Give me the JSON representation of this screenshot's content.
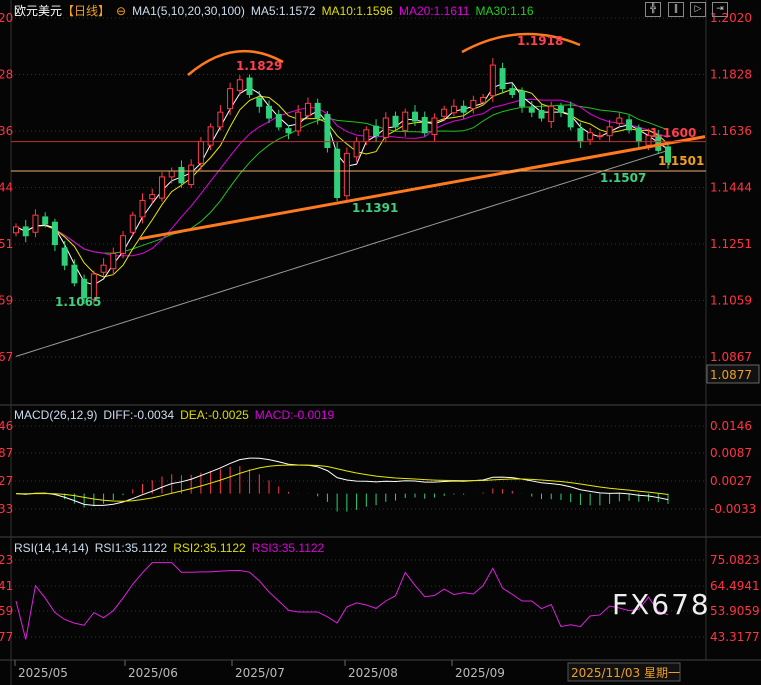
{
  "header": {
    "symbol": "欧元美元",
    "period": "【日线】",
    "ma_label": "MA1(5,10,20,30,100)",
    "ma5": "MA5:1.1572",
    "ma10": "MA10:1.1596",
    "ma20": "MA20:1.1611",
    "ma30": "MA30:1.16"
  },
  "macd_header": {
    "label": "MACD(26,12,9)",
    "diff": "DIFF:-0.0034",
    "dea": "DEA:-0.0025",
    "macd": "MACD:-0.0019"
  },
  "rsi_header": {
    "label": "RSI(14,14,14)",
    "rsi1": "RSI1:35.1122",
    "rsi2": "RSI2:35.1122",
    "rsi3": "RSI3:35.1122"
  },
  "watermark": "FX678",
  "toolbar_icons": [
    "crosshair-icon",
    "bar-icon",
    "play-icon",
    "step-icon"
  ],
  "colors": {
    "up": "#ff3b4a",
    "down": "#2fd07a",
    "ma5": "#ffffff",
    "ma10": "#e8e800",
    "ma20": "#e000e0",
    "ma30": "#22c022",
    "ma100": "#999999",
    "trend": "#ff7a1e",
    "axis": "#ff3344"
  },
  "chart_data": [
    {
      "type": "candlestick",
      "title": "欧元美元【日线】",
      "price_ticks": [
        "1.2020",
        "1.1828",
        "1.1636",
        "1.1444",
        "1.1251",
        "1.1059",
        "1.0867"
      ],
      "left_ticks": [
        "20",
        "28",
        "36",
        "44",
        "51",
        "59",
        "67"
      ],
      "ylim": [
        1.0867,
        1.202
      ],
      "x_ticks": [
        "2025/05",
        "2025/06",
        "2025/07",
        "2025/08",
        "2025/09"
      ],
      "cursor_date": "2025/11/03 星期一",
      "cursor_price": "1.0877",
      "closes": [
        1.131,
        1.128,
        1.135,
        1.132,
        1.125,
        1.118,
        1.112,
        1.107,
        1.115,
        1.118,
        1.122,
        1.128,
        1.135,
        1.14,
        1.142,
        1.148,
        1.15,
        1.146,
        1.152,
        1.16,
        1.165,
        1.17,
        1.178,
        1.181,
        1.176,
        1.172,
        1.168,
        1.165,
        1.163,
        1.17,
        1.173,
        1.168,
        1.158,
        1.141,
        1.156,
        1.16,
        1.164,
        1.162,
        1.168,
        1.165,
        1.17,
        1.167,
        1.163,
        1.168,
        1.171,
        1.172,
        1.17,
        1.174,
        1.175,
        1.186,
        1.178,
        1.176,
        1.172,
        1.17,
        1.168,
        1.172,
        1.17,
        1.165,
        1.16,
        1.163,
        1.162,
        1.165,
        1.168,
        1.164,
        1.16,
        1.162,
        1.157,
        1.153
      ],
      "annotations": [
        {
          "text": "1.1829",
          "color": "red"
        },
        {
          "text": "1.1918",
          "color": "red"
        },
        {
          "text": "1.1391",
          "color": "green"
        },
        {
          "text": "1.1065",
          "color": "green"
        },
        {
          "text": "1.1507",
          "color": "green"
        },
        {
          "text": "1.1600",
          "color": "red"
        },
        {
          "text": "1.1501",
          "color": "orange"
        }
      ],
      "trendline": [
        1.127,
        1.16
      ]
    },
    {
      "type": "line",
      "title": "MACD(26,12,9)",
      "y_ticks": [
        "0.0146",
        "0.0087",
        "0.0027",
        "-0.0033"
      ],
      "left_ticks": [
        "46",
        "87",
        "27",
        "33"
      ]
    },
    {
      "type": "line",
      "title": "RSI(14,14,14)",
      "y_ticks": [
        "75.0823",
        "64.4941",
        "53.9059",
        "43.3177"
      ],
      "left_ticks": [
        "23",
        "41",
        "59",
        "77"
      ]
    }
  ]
}
